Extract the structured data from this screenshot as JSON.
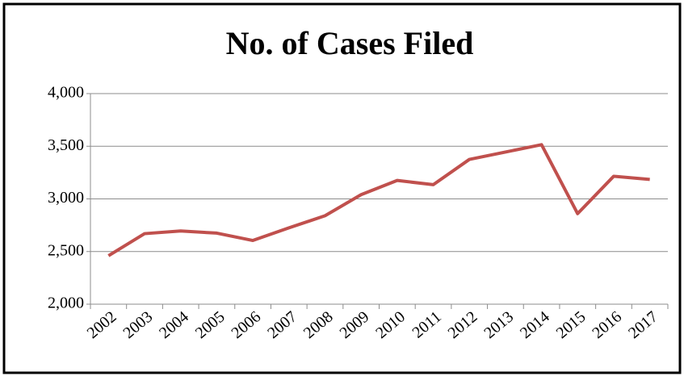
{
  "chart_data": {
    "type": "line",
    "title": "No. of Cases Filed",
    "categories": [
      "2002",
      "2003",
      "2004",
      "2005",
      "2006",
      "2007",
      "2008",
      "2009",
      "2010",
      "2011",
      "2012",
      "2013",
      "2014",
      "2015",
      "2016",
      "2017"
    ],
    "series": [
      {
        "name": "No. of Cases Filed",
        "color": "#c0504d",
        "values": [
          2460,
          2670,
          2695,
          2675,
          2605,
          2725,
          2840,
          3040,
          3175,
          3135,
          3375,
          3445,
          3515,
          2860,
          3215,
          3185
        ]
      }
    ],
    "ylim": [
      2000,
      4000
    ],
    "yticks": [
      {
        "value": 2000,
        "label": "2,000"
      },
      {
        "value": 2500,
        "label": "2,500"
      },
      {
        "value": 3000,
        "label": "3,000"
      },
      {
        "value": 3500,
        "label": "3,500"
      },
      {
        "value": 4000,
        "label": "4,000"
      }
    ],
    "grid": true,
    "legend": false
  }
}
